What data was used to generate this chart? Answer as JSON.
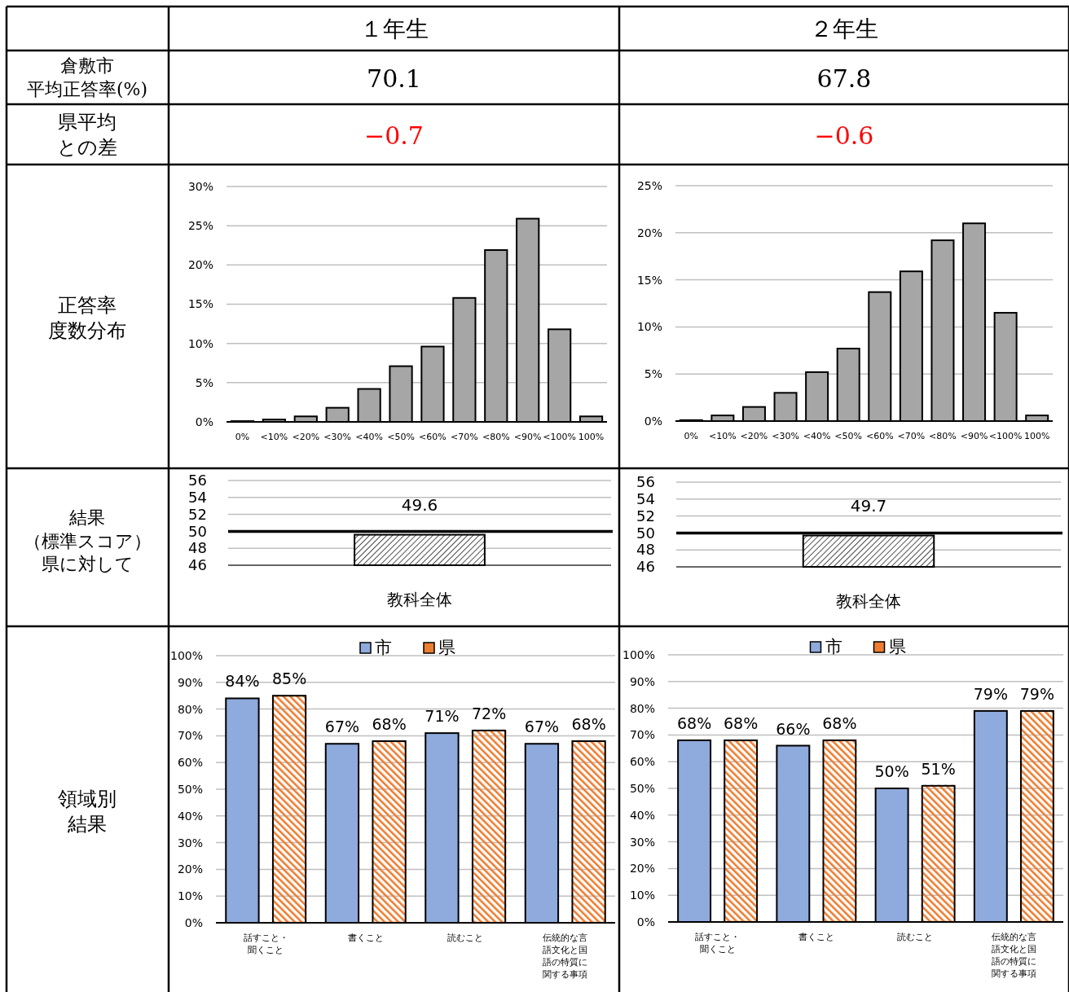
{
  "chart_data": [
    {
      "type": "other",
      "annotations": [
        "１年生",
        "２年生",
        "倉敷市平均正答率(%)",
        "70.1",
        "67.8",
        "県平均との差",
        "−0.7",
        "−0.6",
        "正答率度数分布",
        "結果（標準スコア）県に対して",
        "領域別結果"
      ]
    },
    {
      "type": "bar",
      "categories": [
        "0%",
        "<10%",
        "<20%",
        "<30%",
        "<40%",
        "<50%",
        "<60%",
        "<70%",
        "<80%",
        "<90%",
        "<100%",
        "100%"
      ],
      "values": [
        0.1,
        0.3,
        0.7,
        1.8,
        4.2,
        7.1,
        9.6,
        15.8,
        21.9,
        25.9,
        11.8,
        0.7
      ],
      "color": "#a6a6a6",
      "ylim": [
        0,
        30
      ],
      "yticks": [
        {
          "value": 0,
          "label": "0%"
        },
        {
          "value": 5,
          "label": "5%"
        },
        {
          "value": 10,
          "label": "10%"
        },
        {
          "value": 15,
          "label": "15%"
        },
        {
          "value": 20,
          "label": "20%"
        },
        {
          "value": 25,
          "label": "25%"
        },
        {
          "value": 30,
          "label": "30%"
        }
      ],
      "grid": "y"
    },
    {
      "type": "bar",
      "categories": [
        "0%",
        "<10%",
        "<20%",
        "<30%",
        "<40%",
        "<50%",
        "<60%",
        "<70%",
        "<80%",
        "<90%",
        "<100%",
        "100%"
      ],
      "values": [
        0.1,
        0.6,
        1.5,
        3.0,
        5.2,
        7.7,
        13.7,
        15.9,
        19.2,
        21.0,
        11.5,
        0.6
      ],
      "color": "#a6a6a6",
      "ylim": [
        0,
        25
      ],
      "yticks": [
        {
          "value": 0,
          "label": "0%"
        },
        {
          "value": 5,
          "label": "5%"
        },
        {
          "value": 10,
          "label": "10%"
        },
        {
          "value": 15,
          "label": "15%"
        },
        {
          "value": 20,
          "label": "20%"
        },
        {
          "value": 25,
          "label": "25%"
        }
      ],
      "grid": "y"
    },
    {
      "type": "bar",
      "categories": [
        "教科全体"
      ],
      "values": [
        49.6
      ],
      "color": "#000000",
      "ylim": [
        46,
        56
      ],
      "yticks": [
        46,
        48,
        50,
        52,
        54,
        56
      ],
      "grid": "y",
      "data_labels": true,
      "ref_lines": [
        {
          "axis": "y",
          "value": 50
        }
      ]
    },
    {
      "type": "bar",
      "categories": [
        "教科全体"
      ],
      "values": [
        49.7
      ],
      "color": "#000000",
      "ylim": [
        46,
        56
      ],
      "yticks": [
        46,
        48,
        50,
        52,
        54,
        56
      ],
      "grid": "y",
      "data_labels": true,
      "ref_lines": [
        {
          "axis": "y",
          "value": 50
        }
      ]
    },
    {
      "type": "bar",
      "categories": [
        "話すこと・聞くこと",
        "書くこと",
        "読むこと",
        "伝統的な言語文化と国語の特質に関する事項"
      ],
      "series": [
        {
          "name": "市",
          "color": "#8faadc",
          "values": [
            84,
            67,
            71,
            67
          ],
          "value_labels": [
            "84%",
            "67%",
            "71%",
            "67%"
          ]
        },
        {
          "name": "県",
          "color": "#ed7d31",
          "values": [
            85,
            68,
            72,
            68
          ],
          "value_labels": [
            "85%",
            "68%",
            "72%",
            "68%"
          ]
        }
      ],
      "ylim": [
        0,
        100
      ],
      "yticks": [
        {
          "value": 0,
          "label": "0%"
        },
        {
          "value": 10,
          "label": "10%"
        },
        {
          "value": 20,
          "label": "20%"
        },
        {
          "value": 30,
          "label": "30%"
        },
        {
          "value": 40,
          "label": "40%"
        },
        {
          "value": 50,
          "label": "50%"
        },
        {
          "value": 60,
          "label": "60%"
        },
        {
          "value": 70,
          "label": "70%"
        },
        {
          "value": 80,
          "label": "80%"
        },
        {
          "value": 90,
          "label": "90%"
        },
        {
          "value": 100,
          "label": "100%"
        }
      ],
      "grid": "y",
      "legend": "top"
    },
    {
      "type": "bar",
      "categories": [
        "話すこと・聞くこと",
        "書くこと",
        "読むこと",
        "伝統的な言語文化と国語の特質に関する事項"
      ],
      "series": [
        {
          "name": "市",
          "color": "#8faadc",
          "values": [
            68,
            66,
            50,
            79
          ],
          "value_labels": [
            "68%",
            "66%",
            "50%",
            "79%"
          ]
        },
        {
          "name": "県",
          "color": "#ed7d31",
          "values": [
            68,
            68,
            51,
            79
          ],
          "value_labels": [
            "68%",
            "68%",
            "51%",
            "79%"
          ]
        }
      ],
      "ylim": [
        0,
        100
      ],
      "yticks": [
        {
          "value": 0,
          "label": "0%"
        },
        {
          "value": 10,
          "label": "10%"
        },
        {
          "value": 20,
          "label": "20%"
        },
        {
          "value": 30,
          "label": "30%"
        },
        {
          "value": 40,
          "label": "40%"
        },
        {
          "value": 50,
          "label": "50%"
        },
        {
          "value": 60,
          "label": "60%"
        },
        {
          "value": 70,
          "label": "70%"
        },
        {
          "value": 80,
          "label": "80%"
        },
        {
          "value": 90,
          "label": "90%"
        },
        {
          "value": 100,
          "label": "100%"
        }
      ],
      "grid": "y",
      "legend": "top"
    }
  ]
}
